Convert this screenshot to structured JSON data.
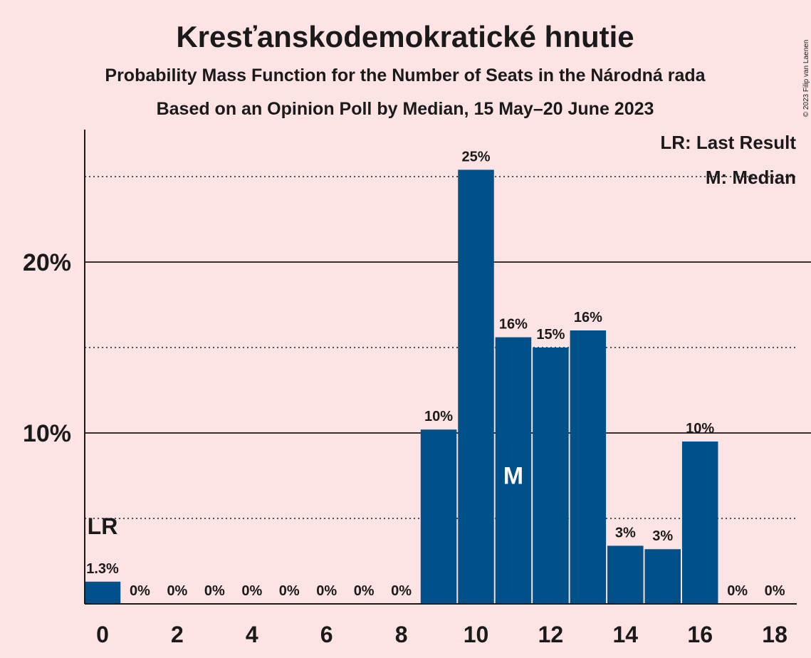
{
  "chart_data": {
    "type": "bar",
    "title": "Kresťanskodemokratické hnutie",
    "subtitle_1": "Probability Mass Function for the Number of Seats in the Národná rada",
    "subtitle_2": "Based on an Opinion Poll by Median, 15 May–20 June 2023",
    "x": [
      0,
      1,
      2,
      3,
      4,
      5,
      6,
      7,
      8,
      9,
      10,
      11,
      12,
      13,
      14,
      15,
      16,
      17,
      18
    ],
    "values": [
      1.3,
      0,
      0,
      0,
      0,
      0,
      0,
      0,
      0,
      10.2,
      25.4,
      15.6,
      15.0,
      16.0,
      3.4,
      3.2,
      9.5,
      0,
      0
    ],
    "data_labels": [
      "1.3%",
      "0%",
      "0%",
      "0%",
      "0%",
      "0%",
      "0%",
      "0%",
      "0%",
      "10%",
      "25%",
      "16%",
      "15%",
      "16%",
      "3%",
      "3%",
      "10%",
      "0%",
      "0%"
    ],
    "x_tick_labels": [
      "0",
      "2",
      "4",
      "6",
      "8",
      "10",
      "12",
      "14",
      "16",
      "18"
    ],
    "x_ticks": [
      0,
      2,
      4,
      6,
      8,
      10,
      12,
      14,
      16,
      18
    ],
    "y_ticks_major": [
      10,
      20
    ],
    "y_tick_labels": [
      "10%",
      "20%"
    ],
    "y_ticks_minor": [
      5,
      15,
      25
    ],
    "ylim": [
      0,
      27.5
    ],
    "last_result": 0,
    "last_result_marker": "LR",
    "median": 11,
    "median_marker": "M",
    "legend": [
      "LR: Last Result",
      "M: Median"
    ],
    "legend_placement": "top-right",
    "copyright": "© 2023 Filip van Laenen",
    "colors": {
      "background": "#fde3e4",
      "bar": "#00508a",
      "text": "#1a1a1a"
    }
  }
}
